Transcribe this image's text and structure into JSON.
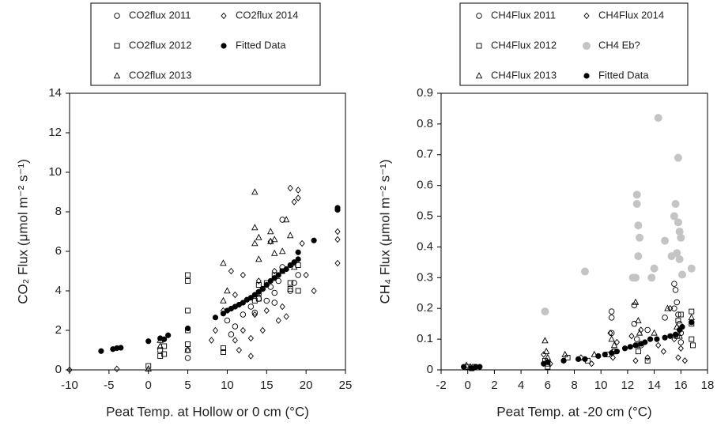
{
  "chart_data": [
    {
      "type": "scatter",
      "x_label": "Peat Temp. at Hollow or 0 cm (°C)",
      "y_label": "CO₂ Flux (μmol m⁻² s⁻¹)",
      "xlim": [
        -10,
        25
      ],
      "xticks": [
        -10,
        -5,
        0,
        5,
        10,
        15,
        20,
        25
      ],
      "ylim": [
        0,
        14
      ],
      "yticks": [
        0,
        2,
        4,
        6,
        8,
        10,
        12,
        14
      ],
      "series": [
        {
          "name": "CO2flux 2011",
          "marker": "circle",
          "color": "#000000",
          "x": [
            5,
            5,
            10,
            10.5,
            11,
            12,
            13,
            14,
            15,
            15.5,
            16,
            16.5,
            17,
            17,
            18,
            18.5,
            19,
            14.5,
            16,
            13.5
          ],
          "values": [
            1.0,
            0.6,
            2.5,
            1.8,
            2.2,
            2.8,
            3.2,
            3.6,
            3.5,
            4.2,
            3.9,
            4.5,
            7.6,
            5.2,
            4.0,
            4.4,
            4.8,
            4.1,
            3.4,
            2.9
          ]
        },
        {
          "name": "CO2flux 2012",
          "marker": "square",
          "color": "#000000",
          "x": [
            0,
            1.5,
            1.5,
            2,
            2,
            5,
            5,
            5,
            5,
            5,
            9.5,
            9.5,
            14,
            14,
            14,
            15,
            16,
            17,
            18,
            18,
            19,
            19,
            13.5
          ],
          "values": [
            0.2,
            0.7,
            1.0,
            0.8,
            1.2,
            4.8,
            4.5,
            3.0,
            1.3,
            2.0,
            1.1,
            0.9,
            3.6,
            3.9,
            4.3,
            4.4,
            4.8,
            5.0,
            4.1,
            4.4,
            4.0,
            5.3,
            3.5
          ]
        },
        {
          "name": "CO2flux 2013",
          "marker": "triangle",
          "color": "#000000",
          "x": [
            0,
            1.5,
            1.5,
            9.5,
            9.5,
            10,
            13.5,
            13.5,
            13.5,
            14,
            14,
            15.5,
            15.5,
            16,
            16,
            17,
            17.5,
            18,
            18.5,
            5
          ],
          "values": [
            0.05,
            1.5,
            1.2,
            5.4,
            3.5,
            4.0,
            9.0,
            7.2,
            6.4,
            6.7,
            5.6,
            6.5,
            7.0,
            5.9,
            6.6,
            6.0,
            7.6,
            6.8,
            5.2,
            1.0
          ]
        },
        {
          "name": "CO2flux 2014",
          "marker": "diamond",
          "color": "#000000",
          "x": [
            -4,
            -10,
            8,
            8.5,
            9.5,
            10.5,
            11,
            11.5,
            12,
            12,
            13,
            13.5,
            14,
            14.5,
            15,
            15.5,
            16,
            16.5,
            17,
            17.5,
            18,
            18.5,
            19,
            19,
            19.5,
            20,
            21,
            24,
            24,
            24,
            13,
            11
          ],
          "values": [
            0.05,
            0,
            1.5,
            2.0,
            3.0,
            5.0,
            1.5,
            1.0,
            2.0,
            4.8,
            1.6,
            2.8,
            4.5,
            2.0,
            3.0,
            6.5,
            5.0,
            2.5,
            3.2,
            2.7,
            9.2,
            8.5,
            9.1,
            8.7,
            6.4,
            4.8,
            4.0,
            7.0,
            6.6,
            5.4,
            0.7,
            3.8
          ]
        },
        {
          "name": "Fitted Data",
          "marker": "filled-circle",
          "color": "#000000",
          "x": [
            -6,
            -4.5,
            -4,
            -3.5,
            0,
            1.5,
            2,
            2.5,
            5,
            8.5,
            9.5,
            10,
            10.5,
            11,
            11.5,
            12,
            12.5,
            13,
            13.5,
            14,
            14.5,
            15,
            15.5,
            16,
            16.5,
            17,
            17.5,
            18,
            18.5,
            19,
            19,
            21,
            24,
            24
          ],
          "values": [
            0.95,
            1.05,
            1.1,
            1.12,
            1.45,
            1.6,
            1.55,
            1.75,
            2.1,
            2.65,
            2.85,
            3.0,
            3.1,
            3.2,
            3.3,
            3.4,
            3.55,
            3.65,
            3.8,
            3.95,
            4.1,
            4.3,
            4.5,
            4.65,
            4.8,
            5.0,
            5.1,
            5.3,
            5.45,
            5.6,
            5.95,
            6.55,
            8.2,
            8.1
          ]
        }
      ]
    },
    {
      "type": "scatter",
      "x_label": "Peat Temp. at -20 cm (°C)",
      "y_label": "CH₄ Flux (μmol m⁻² s⁻¹)",
      "xlim": [
        -2,
        18
      ],
      "xticks": [
        -2,
        0,
        2,
        4,
        6,
        8,
        10,
        12,
        14,
        16,
        18
      ],
      "ylim": [
        0,
        0.9
      ],
      "yticks": [
        0,
        0.1,
        0.2,
        0.3,
        0.4,
        0.5,
        0.6,
        0.7,
        0.8,
        0.9
      ],
      "series": [
        {
          "name": "CH4Flux 2011",
          "marker": "circle",
          "color": "#000000",
          "x": [
            10.8,
            10.8,
            10.8,
            12.5,
            12.5,
            12.7,
            13.5,
            14.8,
            15.5,
            15.6,
            15.7,
            15.8,
            15.9,
            16,
            16,
            15.5,
            13,
            11
          ],
          "values": [
            0.19,
            0.17,
            0.12,
            0.21,
            0.15,
            0.1,
            0.13,
            0.17,
            0.28,
            0.26,
            0.22,
            0.18,
            0.15,
            0.12,
            0.09,
            0.2,
            0.08,
            0.06
          ]
        },
        {
          "name": "CH4Flux 2012",
          "marker": "square",
          "color": "#000000",
          "x": [
            0,
            0.3,
            0.5,
            5.8,
            6,
            6,
            7.5,
            9,
            10.5,
            11,
            12.7,
            12.8,
            13.5,
            15.7,
            15.8,
            16,
            16.8,
            16.8,
            16.8,
            16.9
          ],
          "values": [
            0.01,
            0.005,
            0.01,
            0.03,
            0.02,
            0.01,
            0.04,
            0.03,
            0.05,
            0.06,
            0.08,
            0.06,
            0.03,
            0.11,
            0.16,
            0.18,
            0.19,
            0.15,
            0.1,
            0.08
          ]
        },
        {
          "name": "CH4Flux 2013",
          "marker": "triangle",
          "color": "#000000",
          "x": [
            -0.1,
            0.2,
            5.8,
            5.9,
            6,
            7.3,
            9.5,
            10.8,
            11,
            12.6,
            12.8,
            12.9,
            14,
            15,
            15.7,
            15.9,
            16.8
          ],
          "values": [
            0.015,
            0.01,
            0.095,
            0.06,
            0.04,
            0.05,
            0.05,
            0.1,
            0.08,
            0.22,
            0.16,
            0.12,
            0.12,
            0.2,
            0.14,
            0.11,
            0.17
          ]
        },
        {
          "name": "CH4Flux 2014",
          "marker": "diamond",
          "color": "#000000",
          "x": [
            5.7,
            6.2,
            7.2,
            8.5,
            9.3,
            10.7,
            10.9,
            11.2,
            12.3,
            12.6,
            13,
            13.5,
            14.3,
            14.7,
            15.2,
            15.5,
            15.8,
            16,
            16.1,
            16.3
          ],
          "values": [
            0.05,
            0.02,
            0.03,
            0.04,
            0.02,
            0.12,
            0.04,
            0.09,
            0.11,
            0.03,
            0.13,
            0.04,
            0.08,
            0.06,
            0.2,
            0.1,
            0.04,
            0.07,
            0.14,
            0.03
          ]
        },
        {
          "name": "CH4 Eb?",
          "marker": "filled-circle-large",
          "color": "#c4c4c4",
          "x": [
            5.8,
            8.8,
            12.4,
            12.7,
            12.7,
            12.8,
            12.9,
            12.8,
            12.6,
            13.8,
            14,
            14.3,
            14.8,
            15.3,
            15.5,
            15.6,
            15.7,
            15.8,
            15.8,
            15.9,
            15.9,
            16,
            16.1,
            16.8
          ],
          "values": [
            0.19,
            0.32,
            0.3,
            0.57,
            0.54,
            0.47,
            0.43,
            0.37,
            0.3,
            0.3,
            0.33,
            0.82,
            0.42,
            0.37,
            0.5,
            0.54,
            0.38,
            0.69,
            0.48,
            0.45,
            0.36,
            0.43,
            0.31,
            0.33
          ]
        },
        {
          "name": "Fitted Data",
          "marker": "filled-circle",
          "color": "#000000",
          "x": [
            -0.3,
            0.3,
            0.6,
            0.9,
            5.7,
            6,
            7.2,
            8.3,
            8.8,
            9.8,
            10.3,
            10.8,
            11.2,
            11.8,
            12.2,
            12.6,
            13,
            13.3,
            13.7,
            14.2,
            14.8,
            15.2,
            15.6,
            15.9,
            16.1,
            16.8
          ],
          "values": [
            0.01,
            0.005,
            0.01,
            0.01,
            0.02,
            0.025,
            0.03,
            0.035,
            0.035,
            0.045,
            0.05,
            0.055,
            0.06,
            0.07,
            0.075,
            0.08,
            0.085,
            0.09,
            0.1,
            0.1,
            0.105,
            0.11,
            0.115,
            0.13,
            0.14,
            0.155
          ]
        }
      ]
    }
  ]
}
